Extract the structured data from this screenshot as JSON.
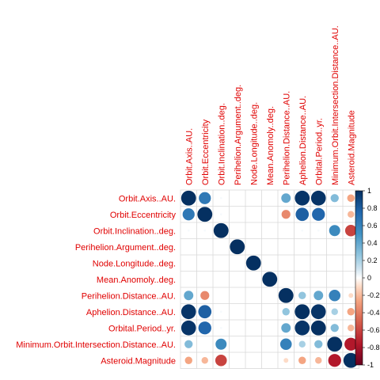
{
  "chart_data": {
    "type": "heatmap",
    "title": "",
    "variables": [
      "Orbit.Axis..AU.",
      "Orbit.Eccentricity",
      "Orbit.Inclination..deg.",
      "Perihelion.Argument..deg.",
      "Node.Longitude..deg.",
      "Mean.Anomoly..deg.",
      "Perihelion.Distance..AU.",
      "Aphelion.Distance..AU.",
      "Orbital.Period..yr.",
      "Minimum.Orbit.Intersection.Distance..AU.",
      "Asteroid.Magnitude"
    ],
    "matrix": [
      [
        1.0,
        0.65,
        0.02,
        0.0,
        0.0,
        0.0,
        0.4,
        0.98,
        0.98,
        0.3,
        -0.25
      ],
      [
        0.65,
        1.0,
        0.02,
        0.0,
        0.0,
        0.0,
        -0.35,
        0.78,
        0.75,
        0.0,
        -0.2
      ],
      [
        0.02,
        0.02,
        1.0,
        0.0,
        0.0,
        0.0,
        0.0,
        0.02,
        0.02,
        0.55,
        -0.6
      ],
      [
        0.0,
        0.0,
        0.0,
        1.0,
        0.0,
        0.0,
        0.0,
        0.0,
        0.0,
        0.0,
        0.0
      ],
      [
        0.0,
        0.0,
        0.0,
        0.0,
        1.0,
        0.0,
        0.0,
        0.0,
        0.0,
        0.0,
        0.0
      ],
      [
        0.0,
        0.0,
        0.0,
        0.0,
        0.0,
        1.0,
        0.0,
        0.0,
        0.0,
        0.0,
        0.0
      ],
      [
        0.4,
        -0.35,
        0.0,
        0.0,
        0.0,
        0.0,
        1.0,
        0.25,
        0.4,
        0.6,
        -0.1
      ],
      [
        0.98,
        0.78,
        0.02,
        0.0,
        0.0,
        0.0,
        0.25,
        1.0,
        0.98,
        0.2,
        -0.25
      ],
      [
        0.98,
        0.75,
        0.02,
        0.0,
        0.0,
        0.0,
        0.4,
        0.98,
        1.0,
        0.3,
        -0.2
      ],
      [
        0.3,
        0.0,
        0.55,
        0.0,
        0.0,
        0.0,
        0.6,
        0.2,
        0.3,
        1.0,
        -0.75
      ],
      [
        -0.25,
        -0.2,
        -0.6,
        0.0,
        0.0,
        0.0,
        -0.1,
        -0.25,
        -0.2,
        -0.75,
        1.0
      ]
    ],
    "colorbar": {
      "ticks": [
        "1",
        "0.8",
        "0.6",
        "0.4",
        "0.2",
        "0",
        "-0.2",
        "-0.4",
        "-0.6",
        "-0.8",
        "-1"
      ],
      "range": [
        -1,
        1
      ],
      "colors": {
        "neg_end": "#67001f",
        "neg_mid": "#d6604d",
        "neg_light": "#fddbc7",
        "zero": "#ffffff",
        "pos_light": "#d1e5f0",
        "pos_mid": "#4393c3",
        "pos_end": "#053061"
      }
    },
    "label_color": "#e00000",
    "grid_color": "#d9d9d9"
  }
}
